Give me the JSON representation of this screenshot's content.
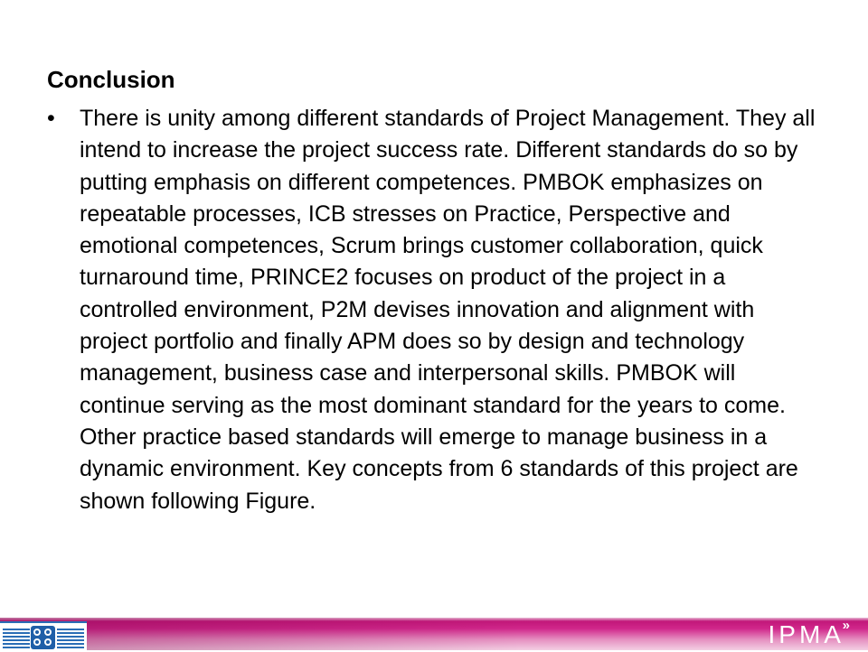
{
  "slide": {
    "heading": "Conclusion",
    "bullet_symbol": "•",
    "bullet_text": "There is unity among different standards of Project Management. They all intend to increase the project success rate. Different standards do so by putting emphasis on different competences. PMBOK emphasizes on repeatable processes, ICB stresses on Practice, Perspective and emotional competences, Scrum brings customer collaboration, quick turnaround time, PRINCE2 focuses on product of the project in a controlled environment, P2M devises innovation and alignment with project portfolio and finally APM does so by design and technology management, business case and interpersonal skills. PMBOK will continue serving as the most dominant standard for the years to come. Other practice based standards will emerge to manage business in a dynamic environment. Key concepts from 6 standards of this project are shown following Figure."
  },
  "footer": {
    "brand": "IPMA",
    "brand_mark": "»",
    "logo_icon": "association-logo-icon",
    "colors": {
      "band": "#c2187a",
      "band_light": "#f3cfe3",
      "logo_blue": "#1f5fa8"
    }
  }
}
